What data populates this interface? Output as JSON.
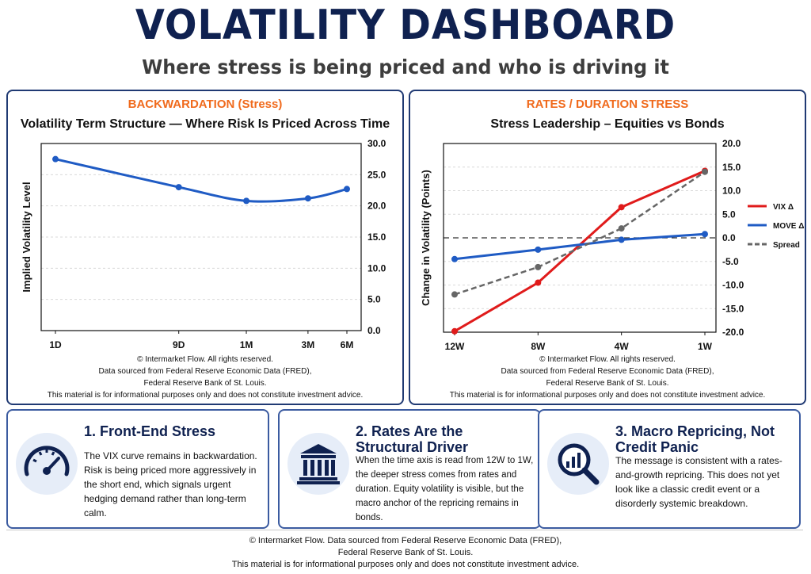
{
  "header": {
    "title": "VOLATILITY DASHBOARD",
    "subtitle": "Where stress is being priced and who is driving it"
  },
  "colors": {
    "navy": "#0f2150",
    "orange": "#f06a1c",
    "blue": "#1f5bc4",
    "red": "#e01b1b",
    "gray": "#666666"
  },
  "chart_data": [
    {
      "type": "line",
      "kicker": "BACKWARDATION (Stress)",
      "title": "Volatility Term Structure — Where Risk Is Priced Across Time",
      "ylabel": "Implied Volatility Level",
      "xlabel": "",
      "categories": [
        "1D",
        "9D",
        "1M",
        "3M",
        "6M"
      ],
      "x_positions": [
        1,
        9,
        30,
        90,
        180
      ],
      "x_scale": "log",
      "values": [
        27.5,
        23.0,
        20.8,
        21.2,
        22.7
      ],
      "ylim": [
        0,
        30
      ],
      "yticks": [
        "0.0",
        "5.0",
        "10.0",
        "15.0",
        "20.0",
        "25.0",
        "30.0"
      ],
      "y_axis_side": "right",
      "grid": true,
      "color": "#1f5bc4"
    },
    {
      "type": "line",
      "kicker": "RATES / DURATION STRESS",
      "title": "Stress Leadership – Equities vs Bonds",
      "ylabel": "Change in Volatility (Points)",
      "xlabel": "",
      "categories": [
        "12W",
        "8W",
        "4W",
        "1W"
      ],
      "ylim": [
        -20,
        20
      ],
      "yticks": [
        "-20.0",
        "-15.0",
        "-10.0",
        "-5.0",
        "0.0",
        "5.0",
        "10.0",
        "15.0",
        "20.0"
      ],
      "y_axis_side": "right",
      "grid": true,
      "legend_position": "right",
      "series": [
        {
          "name": "VIX Δ",
          "values": [
            -19.8,
            -9.5,
            6.5,
            14.2
          ],
          "color": "#e01b1b",
          "dash": false
        },
        {
          "name": "MOVE Δ",
          "values": [
            -4.5,
            -2.5,
            -0.4,
            0.8
          ],
          "color": "#1f5bc4",
          "dash": false
        },
        {
          "name": "Spread",
          "values": [
            -12.0,
            -6.2,
            2.0,
            14.0
          ],
          "color": "#666666",
          "dash": true
        }
      ]
    }
  ],
  "chart_footer": [
    "© Intermarket Flow. All rights reserved.",
    "Data sourced from Federal Reserve Economic Data (FRED),",
    "Federal Reserve Bank of St. Louis.",
    "This material is for informational purposes only and does not constitute investment advice."
  ],
  "cards": [
    {
      "icon": "gauge-icon",
      "title": "1. Front-End Stress",
      "body": "The VIX curve remains in backwardation. Risk is being priced more aggressively in the short end, which signals urgent hedging demand rather than long-term calm."
    },
    {
      "icon": "bank-building-icon",
      "title": "2. Rates Are the Structural Driver",
      "body": "When the time axis is read from 12W to 1W, the deeper stress comes from rates and duration. Equity volatility is visible, but the macro anchor of the repricing remains in bonds."
    },
    {
      "icon": "chart-magnifier-icon",
      "title": "3. Macro Repricing, Not Credit Panic",
      "body": "The message is consistent with a rates-and-growth repricing. This does not yet look like a classic credit event or a disorderly systemic breakdown."
    }
  ],
  "footer": {
    "line1": "© Intermarket Flow. Data sourced from Federal Reserve Economic Data (FRED),",
    "line2": "Federal Reserve Bank of St. Louis.",
    "line3": "This material is for informational purposes only and does not constitute investment advice."
  }
}
